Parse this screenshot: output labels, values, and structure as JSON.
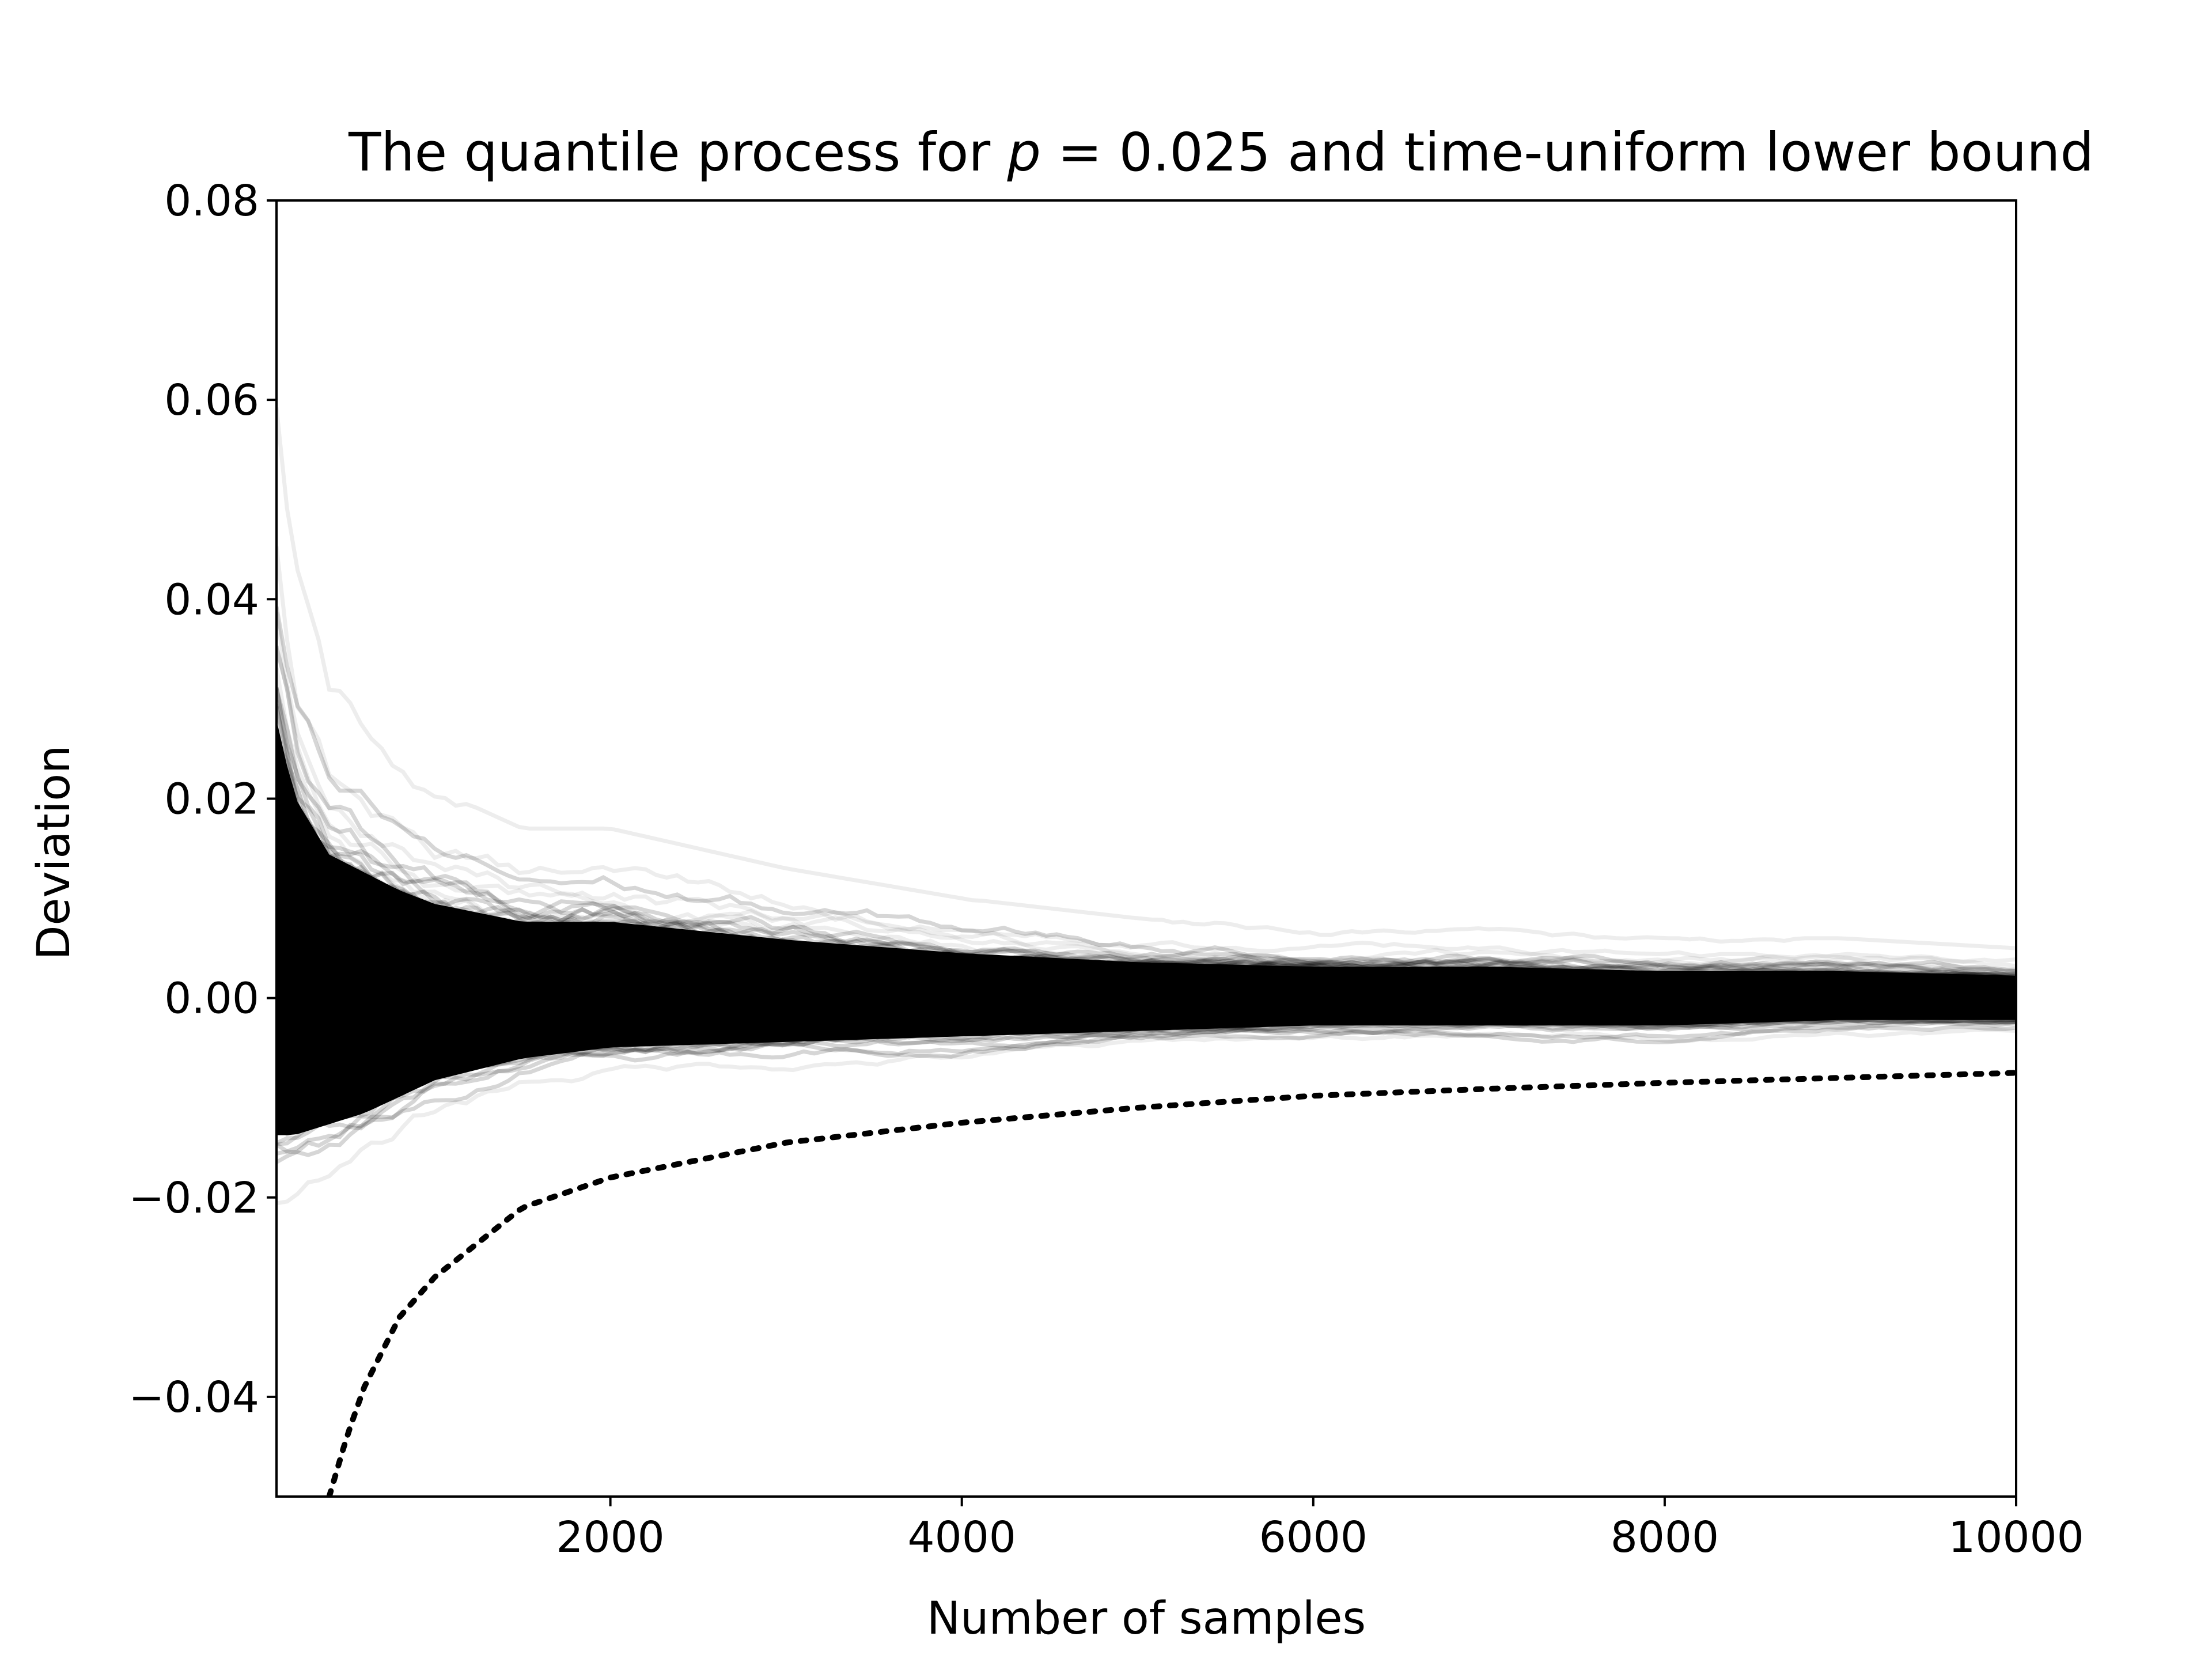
{
  "chart_data": {
    "type": "line",
    "title": {
      "prefix": "The quantile process for ",
      "math_var": "p",
      "math_eq": " = 0.025",
      "suffix": " and time-uniform lower bound"
    },
    "xlabel": "Number of samples",
    "ylabel": "Deviation",
    "xlim": [
      100,
      10000
    ],
    "ylim": [
      -0.05,
      0.08
    ],
    "xticks": [
      {
        "value": 2000,
        "label": "2000"
      },
      {
        "value": 4000,
        "label": "4000"
      },
      {
        "value": 6000,
        "label": "6000"
      },
      {
        "value": 8000,
        "label": "8000"
      },
      {
        "value": 10000,
        "label": "10000"
      }
    ],
    "yticks": [
      {
        "value": -0.04,
        "label": "−0.04"
      },
      {
        "value": -0.02,
        "label": "−0.02"
      },
      {
        "value": 0.0,
        "label": "0.00"
      },
      {
        "value": 0.02,
        "label": "0.02"
      },
      {
        "value": 0.04,
        "label": "0.04"
      },
      {
        "value": 0.06,
        "label": "0.06"
      },
      {
        "value": 0.08,
        "label": "0.08"
      }
    ],
    "grid": false,
    "series": [
      {
        "role": "quantile-process-paths",
        "style": "many semi-transparent black lines",
        "color": "#000000",
        "envelope": {
          "x": [
            100,
            200,
            400,
            600,
            800,
            1000,
            1500,
            2000,
            3000,
            4000,
            5000,
            6000,
            7000,
            8000,
            9000,
            10000
          ],
          "upper": [
            0.062,
            0.045,
            0.032,
            0.028,
            0.024,
            0.021,
            0.017,
            0.017,
            0.013,
            0.01,
            0.008,
            0.007,
            0.007,
            0.006,
            0.006,
            0.005
          ],
          "lower": [
            -0.025,
            -0.025,
            -0.023,
            -0.021,
            -0.018,
            -0.015,
            -0.011,
            -0.009,
            -0.008,
            -0.007,
            -0.006,
            -0.005,
            -0.005,
            -0.005,
            -0.004,
            -0.004
          ]
        }
      },
      {
        "role": "time-uniform-lower-bound",
        "style": "dotted",
        "color": "#000000",
        "x": [
          400,
          500,
          600,
          800,
          1000,
          1500,
          2000,
          3000,
          4000,
          5000,
          6000,
          7000,
          8000,
          9000,
          10000
        ],
        "y": [
          -0.05,
          -0.044,
          -0.039,
          -0.032,
          -0.028,
          -0.021,
          -0.018,
          -0.0145,
          -0.0125,
          -0.011,
          -0.0098,
          -0.0091,
          -0.0085,
          -0.008,
          -0.0075
        ]
      }
    ]
  }
}
